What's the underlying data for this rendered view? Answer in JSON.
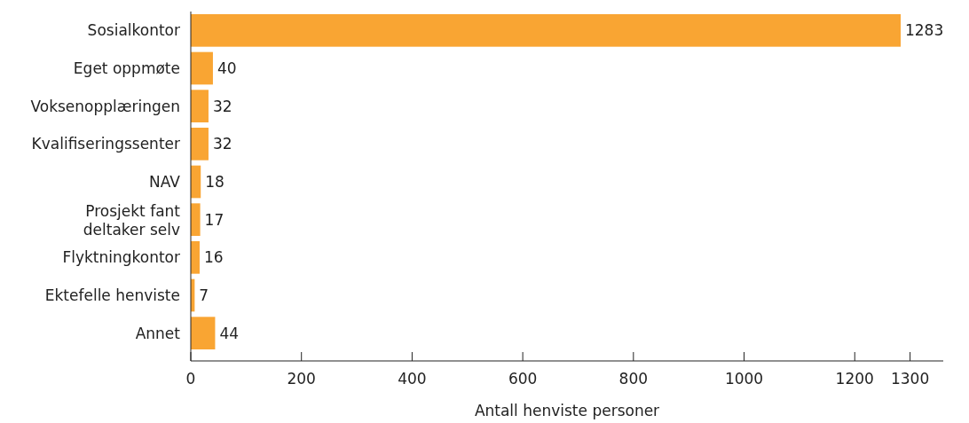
{
  "chart_data": {
    "type": "bar",
    "orientation": "horizontal",
    "xlabel": "Antall henviste personer",
    "categories": [
      "Sosialkontor",
      "Eget oppmøte",
      "Voksenopplæringen",
      "Kvalifiseringssenter",
      "NAV",
      "Prosjekt fant deltaker selv",
      "Flyktningkontor",
      "Ektefelle henviste",
      "Annet"
    ],
    "values": [
      1283,
      40,
      32,
      32,
      18,
      17,
      16,
      7,
      44
    ],
    "color": "#f9a533",
    "xlim": [
      0,
      1360
    ],
    "xticks": [
      0,
      200,
      400,
      600,
      800,
      1000,
      1200,
      1300
    ],
    "data_labels": true,
    "grid": false
  }
}
